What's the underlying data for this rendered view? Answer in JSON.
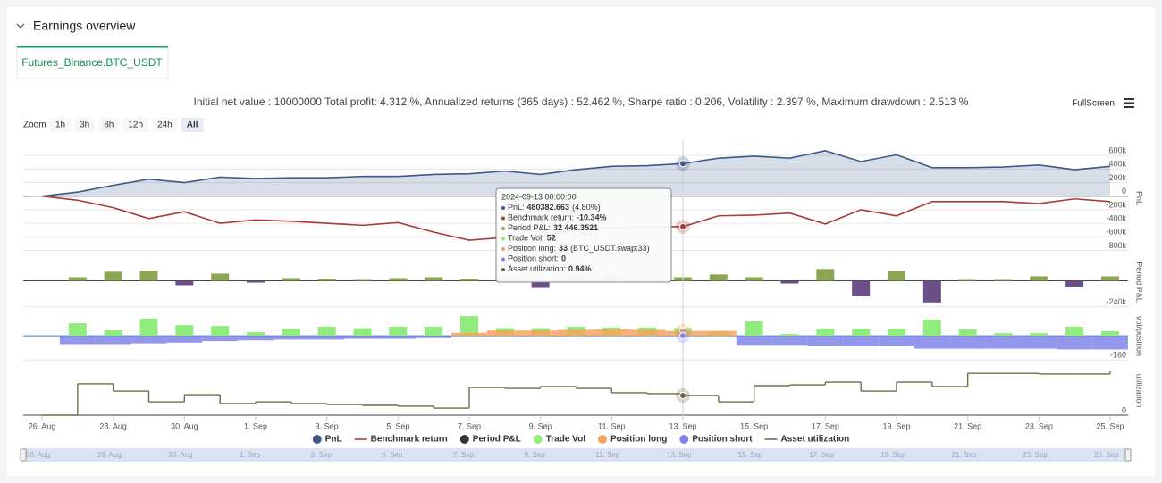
{
  "header": {
    "title": "Earnings overview"
  },
  "tabs": [
    "Futures_Binance.BTC_USDT"
  ],
  "summary": "Initial net value : 10000000 Total profit: 4.312 %, Annualized returns (365 days) : 52.462 %, Sharpe ratio : 0.206, Volatility : 2.397 %, Maximum drawdown : 2.513 %",
  "toolbar": {
    "fullscreen": "FullScreen"
  },
  "zoom": {
    "label": "Zoom",
    "buttons": [
      "1h",
      "3h",
      "8h",
      "12h",
      "24h",
      "All"
    ],
    "selected": "All"
  },
  "tooltip": {
    "title": "2024-09-13 00:00:00",
    "items": [
      {
        "label": "PnL:",
        "value": "480382.663",
        "extra": "(4.80%)"
      },
      {
        "label": "Benchmark return:",
        "value": "-10.34%"
      },
      {
        "label": "Period P&L:",
        "value": "32 446.3521"
      },
      {
        "label": "Trade Vol:",
        "value": "52"
      },
      {
        "label": "Position long:",
        "value": "33",
        "extra": "(BTC_USDT.swap:33)"
      },
      {
        "label": "Position short:",
        "value": "0"
      },
      {
        "label": "Asset utilization:",
        "value": "0.94%"
      }
    ]
  },
  "chart_data": {
    "type": "stock-panels",
    "x": [
      "2024-08-26",
      "2024-08-27",
      "2024-08-28",
      "2024-08-29",
      "2024-08-30",
      "2024-08-31",
      "2024-09-01",
      "2024-09-02",
      "2024-09-03",
      "2024-09-04",
      "2024-09-05",
      "2024-09-06",
      "2024-09-07",
      "2024-09-08",
      "2024-09-09",
      "2024-09-10",
      "2024-09-11",
      "2024-09-12",
      "2024-09-13",
      "2024-09-14",
      "2024-09-15",
      "2024-09-16",
      "2024-09-17",
      "2024-09-18",
      "2024-09-19",
      "2024-09-20",
      "2024-09-21",
      "2024-09-22",
      "2024-09-23",
      "2024-09-24",
      "2024-09-25"
    ],
    "xticks": [
      {
        "value": "2024-08-26",
        "label": "26. Aug"
      },
      {
        "value": "2024-08-28",
        "label": "28. Aug"
      },
      {
        "value": "2024-08-30",
        "label": "30. Aug"
      },
      {
        "value": "2024-09-01",
        "label": "1. Sep"
      },
      {
        "value": "2024-09-03",
        "label": "3. Sep"
      },
      {
        "value": "2024-09-05",
        "label": "5. Sep"
      },
      {
        "value": "2024-09-07",
        "label": "7. Sep"
      },
      {
        "value": "2024-09-09",
        "label": "9. Sep"
      },
      {
        "value": "2024-09-11",
        "label": "11. Sep"
      },
      {
        "value": "2024-09-13",
        "label": "13. Sep"
      },
      {
        "value": "2024-09-15",
        "label": "15. Sep"
      },
      {
        "value": "2024-09-17",
        "label": "17. Sep"
      },
      {
        "value": "2024-09-19",
        "label": "19. Sep"
      },
      {
        "value": "2024-09-21",
        "label": "21. Sep"
      },
      {
        "value": "2024-09-23",
        "label": "23. Sep"
      },
      {
        "value": "2024-09-25",
        "label": "25. Sep"
      }
    ],
    "grid": true,
    "legend": "bottom",
    "panels": [
      {
        "axis_title": "PnL",
        "ylim": [
          -820000,
          760000
        ],
        "yticks": [
          {
            "value": 600000,
            "label": "600k"
          },
          {
            "value": 400000,
            "label": "400k"
          },
          {
            "value": 200000,
            "label": "200k"
          },
          0,
          {
            "value": -200000,
            "label": "-200k"
          },
          {
            "value": -400000,
            "label": "-400k"
          },
          {
            "value": -600000,
            "label": "-600k"
          },
          {
            "value": -800000,
            "label": "-800k"
          }
        ],
        "series": [
          {
            "name": "PnL",
            "type": "area",
            "color": "#3d5a8a",
            "values": [
              0,
              60000,
              160000,
              250000,
              200000,
              280000,
              260000,
              270000,
              270000,
              290000,
              290000,
              320000,
              330000,
              370000,
              320000,
              390000,
              440000,
              450000,
              480382.663,
              560000,
              590000,
              560000,
              670000,
              510000,
              610000,
              420000,
              420000,
              430000,
              460000,
              390000,
              440000
            ]
          },
          {
            "name": "Benchmark return",
            "type": "line",
            "color": "#a83a3a",
            "values": [
              0,
              -60000,
              -170000,
              -330000,
              -230000,
              -400000,
              -350000,
              -370000,
              -400000,
              -430000,
              -390000,
              -530000,
              -650000,
              -610000,
              -590000,
              -490000,
              -470000,
              -450000,
              -450000,
              -290000,
              -280000,
              -250000,
              -410000,
              -200000,
              -290000,
              -80000,
              -80000,
              -80000,
              -110000,
              -40000,
              -80000
            ]
          }
        ]
      },
      {
        "axis_title": "Period P&L",
        "ylim": [
          -250000,
          225000
        ],
        "yticks": [
          {
            "value": -240000,
            "label": "-240k"
          }
        ],
        "series": [
          {
            "name": "Period P&L",
            "type": "column",
            "color": "#333333",
            "positive_color": "#8ba653",
            "negative_color": "#6b4f86",
            "values": [
              0,
              33000,
              83000,
              91000,
              -41000,
              66000,
              -17000,
              25000,
              17000,
              8000,
              25000,
              33000,
              17000,
              33000,
              -66000,
              58000,
              50000,
              17000,
              32446.3521,
              58000,
              33000,
              -25000,
              108000,
              -141000,
              91000,
              -199000,
              8000,
              8000,
              41000,
              -58000,
              41000
            ]
          }
        ]
      },
      {
        "axis_title": "vol/position",
        "ylim": [
          -170,
          166
        ],
        "yticks": [
          -160
        ],
        "series": [
          {
            "name": "Trade Vol",
            "type": "column",
            "color": "#90ed7d",
            "values": [
              0,
              83,
              36,
              113,
              71,
              65,
              24,
              48,
              60,
              51,
              60,
              60,
              130,
              51,
              51,
              60,
              55,
              55,
              52,
              30,
              95,
              12,
              48,
              48,
              48,
              107,
              42,
              18,
              18,
              60,
              30
            ]
          },
          {
            "name": "Position long",
            "type": "band",
            "color": "#f7a35c",
            "values": [
              0,
              0,
              0,
              0,
              0,
              0,
              0,
              0,
              0,
              0,
              0,
              0,
              20,
              35,
              35,
              40,
              45,
              40,
              33,
              33,
              0,
              0,
              0,
              0,
              0,
              0,
              0,
              0,
              0,
              0,
              0
            ]
          },
          {
            "name": "Position short",
            "type": "band",
            "color": "#8085e9",
            "values": [
              0,
              -55,
              -55,
              -50,
              -45,
              -35,
              -30,
              -25,
              -25,
              -20,
              -20,
              -15,
              0,
              0,
              0,
              0,
              0,
              0,
              0,
              0,
              -60,
              -60,
              -65,
              -70,
              -65,
              -85,
              -85,
              -85,
              -85,
              -90,
              -90
            ]
          }
        ]
      },
      {
        "axis_title": "utilization",
        "ylim": [
          0,
          2.35
        ],
        "yticks": [
          0
        ],
        "series": [
          {
            "name": "Asset utilization",
            "type": "step",
            "color": "#6f6c47",
            "values": [
              0,
              1.5,
              1.15,
              0.64,
              0.98,
              0.56,
              0.64,
              0.56,
              0.51,
              0.47,
              0.43,
              0.34,
              1.32,
              1.28,
              1.37,
              1.28,
              1.07,
              1.03,
              0.94,
              0.64,
              1.41,
              1.45,
              1.58,
              1.15,
              1.58,
              1.37,
              2.0,
              2.0,
              1.97,
              1.97,
              2.1
            ]
          }
        ]
      }
    ]
  }
}
